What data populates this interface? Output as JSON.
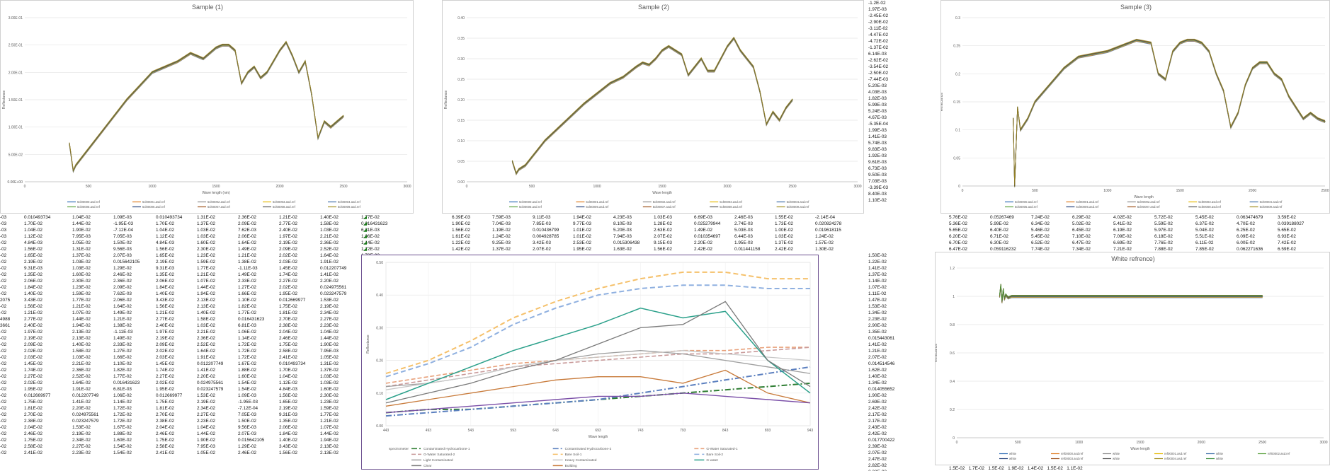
{
  "sheet": {
    "right_column_values": [
      "-1.2E-02",
      "1.97E-03",
      "-2.45E-02",
      "-2.90E-02",
      "-3.11E-02",
      "-4.47E-02",
      "-4.72E-02",
      "-1.37E-02",
      "6.14E-03",
      "-2.62E-02",
      "-3.54E-02",
      "-2.50E-02",
      "-7.44E-03",
      "5.20E-03",
      "4.03E-03",
      "1.82E-03",
      "5.99E-03",
      "5.24E-03",
      "4.67E-03",
      "-5.35E-04",
      "1.99E-03",
      "1.41E-03",
      "5.74E-03",
      "9.83E-03",
      "1.92E-03",
      "9.61E-03",
      "6.73E-03",
      "9.50E-03",
      "7.03E-03",
      "-3.39E-03",
      "8.40E-03",
      "1.10E-02"
    ],
    "left_block_cols": [
      [
        "-03",
        "-03",
        "-03",
        "-03",
        "-02",
        "-02",
        "-02",
        "-02",
        "-02",
        "-02",
        "-02",
        "-02",
        "-02",
        "2075",
        "-02",
        "-02",
        "4988",
        "3661",
        "-02",
        "-02",
        "-02",
        "-02",
        "-02",
        "-02",
        "-02",
        "-02",
        "-02",
        "-02",
        "-02",
        "-02",
        "-02",
        "-02",
        "-02",
        "-02",
        "-02",
        "-02",
        "-02",
        "-02"
      ],
      [
        "0.010493734",
        "1.70E-02",
        "1.04E-02",
        "1.12E-02",
        "4.84E-03",
        "1.56E-02",
        "1.65E-02",
        "2.19E-02",
        "9.31E-03",
        "1.35E-02",
        "2.06E-02",
        "1.84E-02",
        "1.40E-02",
        "3.43E-02",
        "1.56E-02",
        "1.21E-02",
        "2.77E-02",
        "2.40E-02",
        "1.97E-02",
        "2.19E-02",
        "2.09E-02",
        "2.02E-02",
        "2.03E-02",
        "1.45E-02",
        "1.74E-02",
        "2.27E-02",
        "2.02E-02",
        "1.95E-02",
        "0.012669977",
        "1.75E-02",
        "1.81E-02",
        "2.70E-02",
        "2.38E-02",
        "2.04E-02",
        "2.46E-02",
        "1.75E-02",
        "2.58E-02",
        "2.41E-02"
      ],
      [
        "1.04E-02",
        "1.44E-02",
        "1.90E-02",
        "7.95E-03",
        "1.05E-02",
        "1.31E-02",
        "1.37E-02",
        "1.03E-02",
        "1.03E-02",
        "1.60E-02",
        "2.30E-02",
        "1.23E-02",
        "1.59E-02",
        "1.77E-02",
        "1.21E-02",
        "1.07E-02",
        "1.44E-02",
        "1.94E-02",
        "2.13E-02",
        "2.13E-02",
        "1.40E-02",
        "1.58E-02",
        "1.03E-02",
        "2.21E-02",
        "2.36E-02",
        "2.52E-02",
        "1.64E-02",
        "1.91E-02",
        "0.012207749",
        "1.41E-02",
        "2.20E-02",
        "0.024975561",
        "0.023247579",
        "1.53E-02",
        "2.19E-02",
        "2.34E-02",
        "2.27E-02",
        "2.23E-02"
      ],
      [
        "1.09E-03",
        "-1.95E-03",
        "-7.12E-04",
        "7.05E-03",
        "1.50E-02",
        "9.56E-03",
        "2.07E-03",
        "0.015642105",
        "1.29E-02",
        "2.46E-02",
        "2.36E-02",
        "2.09E-02",
        "7.62E-03",
        "2.06E-02",
        "1.64E-02",
        "1.49E-02",
        "1.21E-02",
        "1.38E-02",
        "-1.11E-03",
        "1.49E-02",
        "2.33E-02",
        "1.27E-02",
        "1.66E-02",
        "1.10E-02",
        "1.82E-02",
        "1.77E-02",
        "0.016431623",
        "6.81E-03",
        "1.06E-02",
        "1.14E-02",
        "1.72E-02",
        "1.72E-02",
        "1.72E-02",
        "1.67E-02",
        "1.88E-02",
        "1.60E-02",
        "1.54E-02",
        "1.54E-02"
      ]
    ],
    "mid_rows": [
      [
        "6.39E-03",
        "7.59E-03",
        "9.11E-03",
        "1.94E-02",
        "4.23E-03",
        "1.03E-03",
        "6.69E-03",
        "2.46E-03",
        "1.55E-02",
        "-2.14E-04"
      ],
      [
        "1.90E-02",
        "7.04E-03",
        "7.85E-03",
        "9.77E-03",
        "8.10E-03",
        "1.28E-02",
        "0.025279944",
        "2.74E-03",
        "1.73E-02",
        "0.020824278"
      ],
      [
        "1.56E-02",
        "1.19E-02",
        "0.010436799",
        "1.01E-02",
        "5.20E-03",
        "2.63E-02",
        "1.49E-02",
        "5.03E-03",
        "1.00E-02",
        "0.019618115"
      ],
      [
        "1.61E-02",
        "1.24E-02",
        "0.004928785",
        "1.01E-02",
        "7.94E-03",
        "2.07E-02",
        "0.010354697",
        "6.44E-03",
        "1.03E-02",
        "1.24E-02"
      ],
      [
        "1.22E-02",
        "9.25E-03",
        "3.42E-03",
        "2.53E-02",
        "0.015306438",
        "9.15E-03",
        "2.20E-02",
        "1.95E-03",
        "1.37E-02",
        "1.57E-02"
      ],
      [
        "1.42E-02",
        "1.37E-02",
        "2.07E-02",
        "1.95E-02",
        "1.63E-02",
        "1.56E-02",
        "2.42E-02",
        "0.011441158",
        "2.42E-02",
        "1.30E-02"
      ]
    ],
    "right_rows": [
      [
        "5.76E-02",
        "0.05267469",
        "7.24E-02",
        "6.29E-02",
        "4.02E-02",
        "5.72E-02",
        "5.45E-02",
        "0.063474679",
        "3.59E-02"
      ],
      [
        "5.36E-02",
        "5.99E-02",
        "6.34E-02",
        "5.02E-02",
        "5.41E-02",
        "5.59E-02",
        "6.37E-02",
        "4.70E-02",
        "0.039188027"
      ],
      [
        "5.65E-02",
        "6.40E-02",
        "5.46E-02",
        "6.45E-02",
        "6.19E-02",
        "5.97E-02",
        "5.04E-02",
        "6.25E-02",
        "5.65E-02"
      ],
      [
        "6.20E-02",
        "6.71E-02",
        "5.45E-02",
        "7.10E-02",
        "7.09E-02",
        "6.18E-02",
        "5.51E-02",
        "6.09E-02",
        "6.93E-02"
      ],
      [
        "6.70E-02",
        "6.30E-02",
        "6.52E-02",
        "6.47E-02",
        "6.69E-02",
        "7.76E-02",
        "6.11E-02",
        "6.00E-02",
        "7.42E-02"
      ],
      [
        "6.47E-02",
        "0.059116232",
        "7.74E-02",
        "7.34E-02",
        "7.21E-02",
        "7.88E-02",
        "7.85E-02",
        "0.062271636",
        "6.59E-02"
      ]
    ],
    "right_col2": [
      "1.50E-02",
      "1.22E-02",
      "1.41E-02",
      "1.37E-02",
      "1.14E-02",
      "1.07E-02",
      "1.11E-02",
      "1.47E-02",
      "1.53E-02",
      "1.34E-02",
      "2.23E-02",
      "2.90E-02",
      "1.35E-02",
      "0.015443061",
      "1.41E-02",
      "1.21E-02",
      "2.07E-02",
      "0.014514546",
      "1.62E-02",
      "1.40E-02",
      "1.34E-02",
      "0.014055652",
      "1.90E-02",
      "2.69E-02",
      "2.42E-02",
      "2.17E-02",
      "2.17E-02",
      "2.43E-02",
      "2.42E-02",
      "0.017700422",
      "2.39E-02",
      "2.07E-02",
      "2.47E-02",
      "2.82E-02",
      "2.32E-02",
      "0.019214716"
    ],
    "bottom_right_strip": "1.5E-02   1.7E-02   1.5E-02   1.9E-02   1.4E-02   1.5E-02   1.1E-02"
  },
  "charts": [
    {
      "id": "sample1",
      "type": "line",
      "title": "Sample (1)",
      "xlabel": "Wave length (nm)",
      "ylabel": "Reflectance",
      "xlim": [
        0,
        3000
      ],
      "ylim": [
        0,
        0.3
      ],
      "xticks": [
        "0",
        "500",
        "1000",
        "1500",
        "2000",
        "2500",
        "3000"
      ],
      "yticks": [
        "0.00E+00",
        "5.00E-02",
        "1.00E-01",
        "1.50E-01",
        "2.00E-01",
        "2.50E-01",
        "3.00E-01"
      ],
      "legend": [
        "5cl00000.asd.ref",
        "5cl00001.asd.ref",
        "5cl00002.asd.ref",
        "5cl00003.asd.ref",
        "5cl00004.asd.ref",
        "5cl00005.asd.ref",
        "5cl00006.asd.ref",
        "5cl00007.asd.ref",
        "5cl00008.asd.ref",
        "5cl00009.asd.ref"
      ],
      "series_colors": [
        "#2f6db5",
        "#e07b20",
        "#8a8a8a",
        "#e6b800",
        "#3d6fa8",
        "#5aa03c",
        "#24417a",
        "#9c4f1a",
        "#555555",
        "#a08c1f"
      ],
      "x": [
        350,
        380,
        400,
        450,
        500,
        600,
        700,
        800,
        900,
        1000,
        1100,
        1200,
        1300,
        1350,
        1400,
        1450,
        1500,
        1550,
        1600,
        1650,
        1700,
        1750,
        1800,
        1850,
        1900,
        1950,
        2000,
        2050,
        2100,
        2150,
        2200,
        2250,
        2300,
        2350,
        2400,
        2450,
        2500
      ],
      "values": [
        0.07,
        0.02,
        0.03,
        0.045,
        0.06,
        0.09,
        0.12,
        0.15,
        0.175,
        0.2,
        0.21,
        0.22,
        0.235,
        0.23,
        0.225,
        0.235,
        0.245,
        0.25,
        0.25,
        0.24,
        0.18,
        0.2,
        0.21,
        0.19,
        0.2,
        0.22,
        0.24,
        0.255,
        0.23,
        0.2,
        0.22,
        0.16,
        0.08,
        0.11,
        0.1,
        0.11,
        0.12
      ]
    },
    {
      "id": "sample2",
      "type": "line",
      "title": "Sample (2)",
      "xlabel": "Wave length",
      "ylabel": "Reflectance",
      "xlim": [
        0,
        3000
      ],
      "ylim": [
        0,
        0.4
      ],
      "xticks": [
        "0",
        "500",
        "1000",
        "1500",
        "2000",
        "2500",
        "3000"
      ],
      "yticks": [
        "0.00",
        "0.05",
        "0.10",
        "0.15",
        "0.20",
        "0.25",
        "0.30",
        "0.35",
        "0.40"
      ],
      "legend": [
        "5cl00000.asd.ref",
        "5cl00001.asd.ref",
        "5cl00002.asd.ref",
        "5cl00003.asd.ref",
        "5cl00004.asd.ref",
        "5cl00005.asd.ref",
        "5cl00006.asd.ref",
        "5cl00007.asd.ref",
        "5cl00008.asd.ref",
        "5cl00009.asd.ref"
      ],
      "series_colors": [
        "#2f6db5",
        "#e07b20",
        "#8a8a8a",
        "#e6b800",
        "#3d6fa8",
        "#5aa03c",
        "#24417a",
        "#9c4f1a",
        "#555555",
        "#a08c1f"
      ],
      "x": [
        350,
        380,
        400,
        450,
        500,
        600,
        700,
        800,
        900,
        1000,
        1100,
        1200,
        1300,
        1350,
        1400,
        1450,
        1500,
        1550,
        1600,
        1650,
        1700,
        1750,
        1800,
        1850,
        1900,
        1950,
        2000,
        2050,
        2100,
        2150,
        2200,
        2250,
        2300,
        2350,
        2400,
        2450,
        2500
      ],
      "values": [
        0.05,
        0.02,
        0.03,
        0.04,
        0.06,
        0.1,
        0.13,
        0.16,
        0.19,
        0.215,
        0.24,
        0.255,
        0.28,
        0.29,
        0.285,
        0.3,
        0.32,
        0.33,
        0.32,
        0.31,
        0.26,
        0.28,
        0.3,
        0.27,
        0.27,
        0.3,
        0.33,
        0.35,
        0.32,
        0.3,
        0.28,
        0.22,
        0.14,
        0.17,
        0.15,
        0.18,
        0.2
      ]
    },
    {
      "id": "sample3",
      "type": "line",
      "title": "Sample (3)",
      "xlabel": "Wave length",
      "ylabel": "Reflectance",
      "xlim": [
        0,
        2500
      ],
      "ylim": [
        0,
        0.3
      ],
      "xticks": [
        "0",
        "500",
        "1000",
        "1500",
        "2000",
        "2500"
      ],
      "yticks": [
        "0",
        "0.05",
        "0.1",
        "0.15",
        "0.2",
        "0.25",
        "0.3"
      ],
      "legend": [
        "5cl00000.asd.ref",
        "5cl00001.asd.ref",
        "5cl00002.asd.ref",
        "5cl00003.asd.ref",
        "5cl00004.asd.ref",
        "5cl00005.asd.ref",
        "5cl00006.asd.ref",
        "5cl00007.asd.ref",
        "5cl00008.asd.ref",
        "5cl00009.asd.ref"
      ],
      "series_colors": [
        "#2f6db5",
        "#e07b20",
        "#8a8a8a",
        "#e6b800",
        "#3d6fa8",
        "#5aa03c",
        "#24417a",
        "#9c4f1a",
        "#555555",
        "#a08c1f"
      ],
      "x": [
        350,
        360,
        380,
        400,
        450,
        500,
        600,
        700,
        800,
        900,
        1000,
        1100,
        1200,
        1300,
        1350,
        1400,
        1450,
        1500,
        1550,
        1600,
        1650,
        1700,
        1750,
        1800,
        1850,
        1900,
        1950,
        2000,
        2050,
        2100,
        2150,
        2200,
        2250,
        2300,
        2350,
        2400,
        2450,
        2500
      ],
      "values": [
        0.12,
        0.0,
        0.14,
        0.1,
        0.12,
        0.15,
        0.18,
        0.21,
        0.23,
        0.235,
        0.24,
        0.25,
        0.26,
        0.255,
        0.2,
        0.19,
        0.24,
        0.255,
        0.26,
        0.26,
        0.255,
        0.24,
        0.2,
        0.17,
        0.105,
        0.13,
        0.18,
        0.21,
        0.22,
        0.22,
        0.2,
        0.19,
        0.16,
        0.14,
        0.12,
        0.13,
        0.12,
        0.115
      ]
    },
    {
      "id": "white",
      "type": "line",
      "title": "White refrence)",
      "xlabel": "Wave length",
      "ylabel": "Reflectance",
      "xlim": [
        0,
        3000
      ],
      "ylim": [
        0,
        1.2
      ],
      "xticks": [
        "0",
        "500",
        "1000",
        "1500",
        "2000",
        "2500",
        "3000"
      ],
      "yticks": [
        "0",
        "0.2",
        "0.4",
        "0.6",
        "0.8",
        "1",
        "1.2"
      ],
      "legend": [
        "white",
        "ref00000.asd.ref",
        "white",
        "ref00001.asd.ref",
        "white",
        "ref00002.asd.ref",
        "white",
        "ref00003.asd.ref",
        "white",
        "ref00004.asd.ref",
        "white"
      ],
      "series_colors": [
        "#2f6db5",
        "#e07b20",
        "#8a8a8a",
        "#e6b800",
        "#3d6fa8",
        "#5aa03c",
        "#24417a",
        "#9c4f1a",
        "#555555",
        "#a08c1f",
        "#3c8f3c"
      ],
      "x": [
        350,
        360,
        370,
        380,
        390,
        400,
        420,
        450,
        500,
        1000,
        1500,
        2000,
        2500
      ],
      "values": [
        1.0,
        1.08,
        0.96,
        1.05,
        0.98,
        1.01,
        0.99,
        1.0,
        1.0,
        1.0,
        1.0,
        1.0,
        1.0
      ]
    },
    {
      "id": "categories",
      "type": "line",
      "title": "",
      "xlabel": "Wave length",
      "ylabel": "Reflectance",
      "ylim": [
        0,
        0.5
      ],
      "categories": [
        "443",
        "493",
        "543",
        "593",
        "643",
        "693",
        "743",
        "793",
        "843",
        "893",
        "943"
      ],
      "yticks": [
        "0.00",
        "0.10",
        "0.20",
        "0.30",
        "0.40",
        "0.50"
      ],
      "series": [
        {
          "name": "Contaminated Hydrocarbone-1",
          "color": "#2e7d32",
          "dash": "8,3,2,3",
          "width": 2,
          "values": [
            0.04,
            0.05,
            0.05,
            0.06,
            0.07,
            0.08,
            0.09,
            0.1,
            0.11,
            0.12,
            0.13
          ]
        },
        {
          "name": "Contaminated Hydrocarbone-2",
          "color": "#5b7fbf",
          "dash": "8,3,2,3",
          "width": 2,
          "values": [
            0.03,
            0.04,
            0.05,
            0.06,
            0.07,
            0.08,
            0.1,
            0.12,
            0.14,
            0.16,
            0.18
          ]
        },
        {
          "name": "G-Water Saturated-1",
          "color": "#e8a07a",
          "dash": "6,3",
          "width": 1.6,
          "values": [
            0.13,
            0.15,
            0.17,
            0.19,
            0.2,
            0.21,
            0.22,
            0.23,
            0.23,
            0.24,
            0.24
          ]
        },
        {
          "name": "G-Water Saturated-2",
          "color": "#c99a9a",
          "dash": "6,3",
          "width": 1.6,
          "values": [
            0.12,
            0.14,
            0.16,
            0.18,
            0.19,
            0.2,
            0.21,
            0.22,
            0.22,
            0.23,
            0.24
          ]
        },
        {
          "name": "Bare Soil-1",
          "color": "#f5c06a",
          "dash": "7,4",
          "width": 2,
          "values": [
            0.16,
            0.2,
            0.26,
            0.33,
            0.38,
            0.42,
            0.45,
            0.47,
            0.47,
            0.45,
            0.45
          ]
        },
        {
          "name": "Bare Soil-2",
          "color": "#8fb0e0",
          "dash": "7,4",
          "width": 2,
          "values": [
            0.15,
            0.19,
            0.24,
            0.31,
            0.36,
            0.4,
            0.42,
            0.43,
            0.43,
            0.42,
            0.42
          ]
        },
        {
          "name": "Light Contaminated",
          "color": "#9e9e9e",
          "dash": "",
          "width": 1.3,
          "values": [
            0.12,
            0.13,
            0.15,
            0.18,
            0.2,
            0.22,
            0.23,
            0.22,
            0.2,
            0.18,
            0.16
          ]
        },
        {
          "name": "Heavy Contaminated",
          "color": "#c8c8c8",
          "dash": "",
          "width": 1.3,
          "values": [
            0.11,
            0.13,
            0.15,
            0.18,
            0.2,
            0.21,
            0.22,
            0.23,
            0.22,
            0.21,
            0.2
          ]
        },
        {
          "name": "G water",
          "color": "#2aa08a",
          "dash": "",
          "width": 1.5,
          "values": [
            0.08,
            0.13,
            0.18,
            0.23,
            0.27,
            0.31,
            0.36,
            0.33,
            0.35,
            0.2,
            0.1
          ]
        },
        {
          "name": "Clear",
          "color": "#7a7a7a",
          "dash": "",
          "width": 1.3,
          "values": [
            0.07,
            0.1,
            0.13,
            0.17,
            0.2,
            0.25,
            0.3,
            0.31,
            0.38,
            0.2,
            0.12
          ]
        },
        {
          "name": "Building",
          "color": "#c87a3a",
          "dash": "",
          "width": 1.3,
          "values": [
            0.06,
            0.08,
            0.1,
            0.12,
            0.14,
            0.15,
            0.15,
            0.13,
            0.17,
            0.1,
            0.07
          ]
        },
        {
          "name": "",
          "color": "#7b4fa8",
          "dash": "",
          "width": 1.4,
          "values": [
            0.04,
            0.05,
            0.06,
            0.07,
            0.08,
            0.09,
            0.09,
            0.1,
            0.09,
            0.08,
            0.07
          ]
        }
      ],
      "legend_prefix": "spectrometer"
    }
  ]
}
